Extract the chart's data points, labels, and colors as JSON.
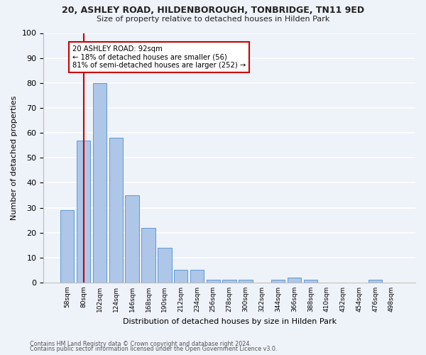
{
  "title1": "20, ASHLEY ROAD, HILDENBOROUGH, TONBRIDGE, TN11 9ED",
  "title2": "Size of property relative to detached houses in Hilden Park",
  "xlabel": "Distribution of detached houses by size in Hilden Park",
  "ylabel": "Number of detached properties",
  "categories": [
    "58sqm",
    "80sqm",
    "102sqm",
    "124sqm",
    "146sqm",
    "168sqm",
    "190sqm",
    "212sqm",
    "234sqm",
    "256sqm",
    "278sqm",
    "300sqm",
    "322sqm",
    "344sqm",
    "366sqm",
    "388sqm",
    "410sqm",
    "432sqm",
    "454sqm",
    "476sqm",
    "498sqm"
  ],
  "values": [
    29,
    57,
    80,
    58,
    35,
    22,
    14,
    5,
    5,
    1,
    1,
    1,
    0,
    1,
    2,
    1,
    0,
    0,
    0,
    1,
    0
  ],
  "bar_color": "#aec6e8",
  "bar_edge_color": "#5b9bd5",
  "ref_line_color": "#cc0000",
  "annotation_text": "20 ASHLEY ROAD: 92sqm\n← 18% of detached houses are smaller (56)\n81% of semi-detached houses are larger (252) →",
  "annotation_box_color": "#cc0000",
  "ylim": [
    0,
    100
  ],
  "yticks": [
    0,
    10,
    20,
    30,
    40,
    50,
    60,
    70,
    80,
    90,
    100
  ],
  "background_color": "#eef2f9",
  "grid_color": "#ffffff",
  "fig_color": "#eef2f9",
  "footer1": "Contains HM Land Registry data © Crown copyright and database right 2024.",
  "footer2": "Contains public sector information licensed under the Open Government Licence v3.0."
}
